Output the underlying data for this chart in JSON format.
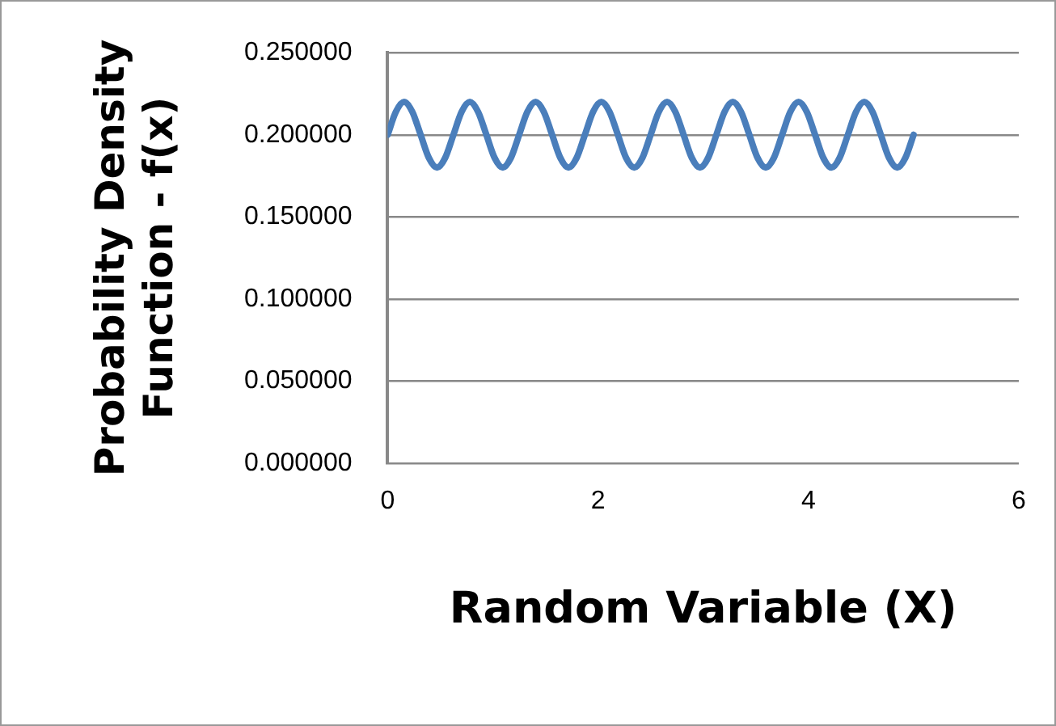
{
  "chart_data": {
    "type": "line",
    "xlabel": "Random Variable (X)",
    "ylabel": "Probability Density Function - f(x)",
    "x": [
      0,
      0.078,
      0.156,
      0.234,
      0.313,
      0.391,
      0.469,
      0.547,
      0.625,
      0.703,
      0.781,
      0.859,
      0.938,
      1.016,
      1.094,
      1.172,
      1.25,
      1.328,
      1.406,
      1.484,
      1.563,
      1.641,
      1.719,
      1.797,
      1.875,
      1.953,
      2.031,
      2.109,
      2.188,
      2.266,
      2.344,
      2.422,
      2.5,
      2.578,
      2.656,
      2.734,
      2.813,
      2.891,
      2.969,
      3.047,
      3.125,
      3.203,
      3.281,
      3.359,
      3.438,
      3.516,
      3.594,
      3.672,
      3.75,
      3.828,
      3.906,
      3.984,
      4.063,
      4.141,
      4.219,
      4.297,
      4.375,
      4.453,
      4.531,
      4.609,
      4.688,
      4.766,
      4.844,
      4.922,
      5.0
    ],
    "series": [
      {
        "color": "#4a7ebb",
        "values": [
          0.2,
          0.214,
          0.22,
          0.214,
          0.2,
          0.186,
          0.18,
          0.186,
          0.2,
          0.214,
          0.22,
          0.214,
          0.2,
          0.186,
          0.18,
          0.186,
          0.2,
          0.214,
          0.22,
          0.214,
          0.2,
          0.186,
          0.18,
          0.186,
          0.2,
          0.214,
          0.22,
          0.214,
          0.2,
          0.186,
          0.18,
          0.186,
          0.2,
          0.214,
          0.22,
          0.214,
          0.2,
          0.186,
          0.18,
          0.186,
          0.2,
          0.214,
          0.22,
          0.214,
          0.2,
          0.186,
          0.18,
          0.186,
          0.2,
          0.214,
          0.22,
          0.214,
          0.2,
          0.186,
          0.18,
          0.186,
          0.2,
          0.214,
          0.22,
          0.214,
          0.2,
          0.186,
          0.18,
          0.186,
          0.2
        ]
      }
    ],
    "xlim": [
      0,
      6
    ],
    "xticks": [
      0,
      2,
      4,
      6
    ],
    "ylim": [
      0,
      0.25
    ],
    "yticks": [
      {
        "value": 0,
        "label": "0.000000"
      },
      {
        "value": 0.05,
        "label": "0.050000"
      },
      {
        "value": 0.1,
        "label": "0.100000"
      },
      {
        "value": 0.15,
        "label": "0.150000"
      },
      {
        "value": 0.2,
        "label": "0.200000"
      },
      {
        "value": 0.25,
        "label": "0.250000"
      }
    ],
    "grid": "y",
    "legend": false,
    "marker": "none",
    "line_style": "solid"
  }
}
